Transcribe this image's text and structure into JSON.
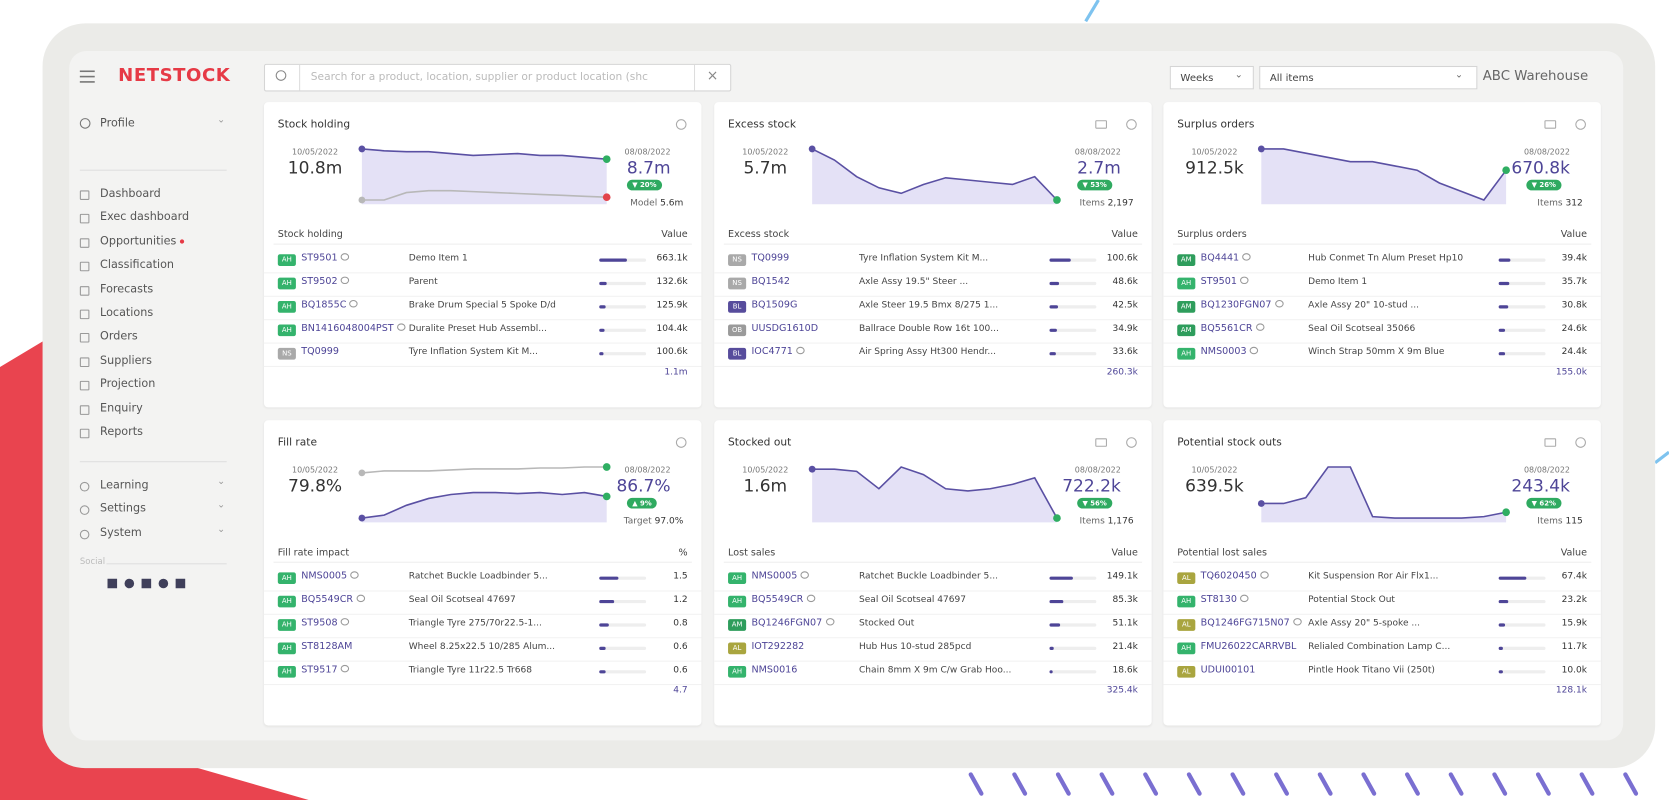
{
  "header": {
    "logo": "NETSTOCK",
    "search_placeholder": "Search for a product, location, supplier or product location (shc",
    "period": "Weeks",
    "filter": "All items",
    "warehouse": "ABC Warehouse"
  },
  "sidebar": {
    "profile": "Profile",
    "nav": [
      {
        "label": "Dashboard"
      },
      {
        "label": "Exec dashboard"
      },
      {
        "label": "Opportunities",
        "alert": true
      },
      {
        "label": "Classification"
      },
      {
        "label": "Forecasts"
      },
      {
        "label": "Locations"
      },
      {
        "label": "Orders"
      },
      {
        "label": "Suppliers"
      },
      {
        "label": "Projection"
      },
      {
        "label": "Enquiry"
      },
      {
        "label": "Reports"
      }
    ],
    "groups": [
      "Learning",
      "Settings",
      "System"
    ],
    "social_label": "Social"
  },
  "tag_colors": {
    "AH": "#34b36c",
    "NS": "#a9a9a9",
    "BL": "#574c9c",
    "OB": "#9a9a9a",
    "AM": "#2e9d5c",
    "AL": "#a9a53f"
  },
  "cards": [
    {
      "title": "Stock holding",
      "export": false,
      "start_date": "10/05/2022",
      "start_value": "10.8m",
      "end_date": "08/08/2022",
      "end_value": "8.7m",
      "badge": "▼ 20%",
      "foot_label": "Model",
      "foot_value": "5.6m",
      "trends": [
        {
          "color": "#5a50a3",
          "end_color": "#2fae62",
          "area": true,
          "values": [
            85,
            83,
            82,
            82,
            80,
            78,
            79,
            80,
            78,
            78,
            76,
            74
          ]
        },
        {
          "color": "#b8b8b8",
          "end_color": "#e2434b",
          "area": false,
          "values": [
            30,
            30,
            38,
            40,
            40,
            39,
            38,
            37,
            36,
            35,
            34,
            33
          ]
        }
      ],
      "table_label": "Stock holding",
      "value_label": "Value",
      "total": "1.1m",
      "rows": [
        {
          "tag": "AH",
          "code": "ST9501",
          "comment": true,
          "name": "Demo Item 1",
          "value": "663.1k",
          "bar": 60
        },
        {
          "tag": "AH",
          "code": "ST9502",
          "comment": true,
          "name": "Parent",
          "value": "132.6k",
          "bar": 15
        },
        {
          "tag": "AH",
          "code": "BQ1855C",
          "comment": true,
          "name": "Brake Drum Special 5 Spoke D/d",
          "value": "125.9k",
          "bar": 14
        },
        {
          "tag": "AH",
          "code": "BN1416048004PST",
          "comment": true,
          "name": "Duralite Preset Hub Assembl...",
          "value": "104.4k",
          "bar": 11
        },
        {
          "tag": "NS",
          "code": "TQ0999",
          "comment": false,
          "name": "Tyre Inflation System Kit M...",
          "value": "100.6k",
          "bar": 10
        }
      ]
    },
    {
      "title": "Excess stock",
      "export": true,
      "start_date": "10/05/2022",
      "start_value": "5.7m",
      "end_date": "08/08/2022",
      "end_value": "2.7m",
      "badge": "▼ 53%",
      "foot_label": "Items",
      "foot_value": "2,197",
      "trends": [
        {
          "color": "#5a50a3",
          "end_color": "#2fae62",
          "area": true,
          "values": [
            70,
            60,
            45,
            35,
            30,
            38,
            44,
            42,
            40,
            38,
            45,
            24
          ]
        }
      ],
      "table_label": "Excess stock",
      "value_label": "Value",
      "total": "260.3k",
      "rows": [
        {
          "tag": "NS",
          "code": "TQ0999",
          "comment": false,
          "name": "Tyre Inflation System Kit M...",
          "value": "100.6k",
          "bar": 45
        },
        {
          "tag": "NS",
          "code": "BQ1542",
          "comment": false,
          "name": "Axle Assy 19.5\" Steer ...",
          "value": "48.6k",
          "bar": 20
        },
        {
          "tag": "BL",
          "code": "BQ1509G",
          "comment": false,
          "name": "Axle Steer 19.5 Bmx 8/275 1...",
          "value": "42.5k",
          "bar": 18
        },
        {
          "tag": "OB",
          "code": "UUSDG1610D",
          "comment": false,
          "name": "Ballrace Double Row 16t 100...",
          "value": "34.9k",
          "bar": 15
        },
        {
          "tag": "BL",
          "code": "IOC4771",
          "comment": true,
          "name": "Air Spring Assy Ht300 Hendr...",
          "value": "33.6k",
          "bar": 14
        }
      ]
    },
    {
      "title": "Surplus orders",
      "export": true,
      "start_date": "10/05/2022",
      "start_value": "912.5k",
      "end_date": "08/08/2022",
      "end_value": "670.8k",
      "badge": "▼ 26%",
      "foot_label": "Items",
      "foot_value": "312",
      "trends": [
        {
          "color": "#5a50a3",
          "end_color": "#2fae62",
          "area": true,
          "values": [
            70,
            70,
            69,
            68,
            67,
            67,
            66,
            65,
            62,
            60,
            58,
            65
          ]
        }
      ],
      "table_label": "Surplus orders",
      "value_label": "Value",
      "total": "155.0k",
      "rows": [
        {
          "tag": "AM",
          "code": "BQ4441",
          "comment": true,
          "name": "Hub Conmet Tn Alum Preset Hp10",
          "value": "39.4k",
          "bar": 25
        },
        {
          "tag": "AH",
          "code": "ST9501",
          "comment": true,
          "name": "Demo Item 1",
          "value": "35.7k",
          "bar": 22
        },
        {
          "tag": "AM",
          "code": "BQ1230FGN07",
          "comment": true,
          "name": "Axle Assy 20\" 10-stud ...",
          "value": "30.8k",
          "bar": 20
        },
        {
          "tag": "AM",
          "code": "BQ5561CR",
          "comment": true,
          "name": "Seal Oil Scotseal 35066",
          "value": "24.6k",
          "bar": 14
        },
        {
          "tag": "AH",
          "code": "NMS0003",
          "comment": true,
          "name": "Winch Strap 50mm X 9m Blue",
          "value": "24.4k",
          "bar": 14
        }
      ]
    },
    {
      "title": "Fill rate",
      "export": false,
      "start_date": "10/05/2022",
      "start_value": "79.8%",
      "end_date": "08/08/2022",
      "end_value": "86.7%",
      "badge": "▲ 9%",
      "foot_label": "Target",
      "foot_value": "97.0%",
      "trends": [
        {
          "color": "#b8b8b8",
          "end_color": "#2fae62",
          "area": false,
          "values": [
            58,
            60,
            60,
            60,
            61,
            62,
            62,
            62,
            63,
            63,
            64,
            64
          ]
        },
        {
          "color": "#5a50a3",
          "end_color": "#2fae62",
          "area": true,
          "values": [
            12,
            15,
            25,
            32,
            36,
            38,
            38,
            37,
            38,
            36,
            38,
            34
          ]
        }
      ],
      "table_label": "Fill rate impact",
      "value_label": "%",
      "total": "4.7",
      "rows": [
        {
          "tag": "AH",
          "code": "NMS0005",
          "comment": true,
          "name": "Ratchet Buckle Loadbinder 5...",
          "value": "1.5",
          "bar": 40
        },
        {
          "tag": "AH",
          "code": "BQ5549CR",
          "comment": true,
          "name": "Seal Oil Scotseal 47697",
          "value": "1.2",
          "bar": 32
        },
        {
          "tag": "AH",
          "code": "ST9508",
          "comment": true,
          "name": "Triangle Tyre 275/70r22.5-1...",
          "value": "0.8",
          "bar": 20
        },
        {
          "tag": "AH",
          "code": "ST8128AM",
          "comment": false,
          "name": "Wheel 8.25x22.5 10/285 Alum...",
          "value": "0.6",
          "bar": 14
        },
        {
          "tag": "AH",
          "code": "ST9517",
          "comment": true,
          "name": "Triangle Tyre 11r22.5 Tr668",
          "value": "0.6",
          "bar": 14
        }
      ]
    },
    {
      "title": "Stocked out",
      "export": true,
      "start_date": "10/05/2022",
      "start_value": "1.6m",
      "end_date": "08/08/2022",
      "end_value": "722.2k",
      "badge": "▼ 56%",
      "foot_label": "Items",
      "foot_value": "1,176",
      "trends": [
        {
          "color": "#5a50a3",
          "end_color": "#2fae62",
          "area": true,
          "values": [
            80,
            80,
            78,
            62,
            82,
            75,
            62,
            60,
            62,
            66,
            72,
            35
          ]
        }
      ],
      "table_label": "Lost sales",
      "value_label": "Value",
      "total": "325.4k",
      "rows": [
        {
          "tag": "AH",
          "code": "NMS0005",
          "comment": true,
          "name": "Ratchet Buckle Loadbinder 5...",
          "value": "149.1k",
          "bar": 50
        },
        {
          "tag": "AH",
          "code": "BQ5549CR",
          "comment": true,
          "name": "Seal Oil Scotseal 47697",
          "value": "85.3k",
          "bar": 30
        },
        {
          "tag": "AM",
          "code": "BQ1246FGN07",
          "comment": true,
          "name": "Stocked Out",
          "value": "51.1k",
          "bar": 22
        },
        {
          "tag": "AL",
          "code": "IOT292282",
          "comment": false,
          "name": "Hub Hus 10-stud 285pcd",
          "value": "21.4k",
          "bar": 8
        },
        {
          "tag": "AH",
          "code": "NMS0016",
          "comment": false,
          "name": "Chain 8mm X 9m C/w Grab Hoo...",
          "value": "18.6k",
          "bar": 7
        }
      ]
    },
    {
      "title": "Potential stock outs",
      "export": true,
      "start_date": "10/05/2022",
      "start_value": "639.5k",
      "end_date": "08/08/2022",
      "end_value": "243.4k",
      "badge": "▼ 62%",
      "foot_label": "Items",
      "foot_value": "115",
      "trends": [
        {
          "color": "#5a50a3",
          "end_color": "#2fae62",
          "area": true,
          "values": [
            30,
            30,
            38,
            80,
            80,
            12,
            10,
            10,
            10,
            10,
            12,
            18
          ]
        }
      ],
      "table_label": "Potential lost sales",
      "value_label": "Value",
      "total": "128.1k",
      "rows": [
        {
          "tag": "AL",
          "code": "TQ6020450",
          "comment": true,
          "name": "Kit Suspension Ror Air Flx1...",
          "value": "67.4k",
          "bar": 60
        },
        {
          "tag": "AH",
          "code": "ST8130",
          "comment": true,
          "name": "Potential Stock Out",
          "value": "23.2k",
          "bar": 20
        },
        {
          "tag": "AL",
          "code": "BQ1246FG715N07",
          "comment": true,
          "name": "Axle Assy 20\" 5-spoke ...",
          "value": "15.9k",
          "bar": 14
        },
        {
          "tag": "AH",
          "code": "FMU26022CARRVBL",
          "comment": false,
          "name": "Relialed Combination Lamp C...",
          "value": "11.7k",
          "bar": 10
        },
        {
          "tag": "AL",
          "code": "UDUI00101",
          "comment": false,
          "name": "Pintle Hook Titano Vii (250t)",
          "value": "10.0k",
          "bar": 9
        }
      ]
    }
  ]
}
